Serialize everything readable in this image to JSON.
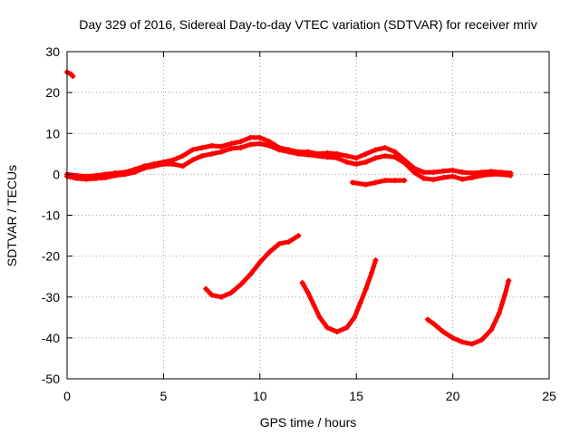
{
  "chart_data": {
    "type": "scatter",
    "title": "Day 329 of 2016, Sidereal Day-to-day VTEC variation (SDTVAR) for receiver mriv",
    "xlabel": "GPS time / hours",
    "ylabel": "SDTVAR / TECUs",
    "xlim": [
      0,
      25
    ],
    "ylim": [
      -50,
      30
    ],
    "xticks": [
      0,
      5,
      10,
      15,
      20,
      25
    ],
    "yticks": [
      -50,
      -40,
      -30,
      -20,
      -10,
      0,
      10,
      20,
      30
    ],
    "grid": true,
    "color": "#ff0000",
    "series": [
      {
        "name": "cluster-upper",
        "points": [
          [
            0.0,
            0
          ],
          [
            0.5,
            -0.3
          ],
          [
            1,
            -0.5
          ],
          [
            1.5,
            -0.3
          ],
          [
            2,
            0
          ],
          [
            2.5,
            0.3
          ],
          [
            3,
            0.5
          ],
          [
            3.5,
            1.2
          ],
          [
            4,
            2
          ],
          [
            4.5,
            2.5
          ],
          [
            5,
            3
          ],
          [
            5.5,
            3.5
          ],
          [
            6,
            4.5
          ],
          [
            6.5,
            6
          ],
          [
            7,
            6.5
          ],
          [
            7.5,
            7
          ],
          [
            8,
            6.8
          ],
          [
            8.5,
            7.5
          ],
          [
            9,
            8
          ],
          [
            9.5,
            9
          ],
          [
            10,
            9
          ],
          [
            10.5,
            8
          ],
          [
            11,
            6.5
          ],
          [
            11.5,
            6
          ],
          [
            12,
            5.5
          ],
          [
            12.5,
            5.5
          ],
          [
            13,
            5
          ],
          [
            13.5,
            5.2
          ],
          [
            14,
            5
          ],
          [
            14.5,
            4.5
          ],
          [
            15,
            4
          ],
          [
            15.5,
            5
          ],
          [
            16,
            6
          ],
          [
            16.5,
            6.5
          ],
          [
            17,
            5.5
          ],
          [
            17.5,
            3.5
          ],
          [
            18,
            1.5
          ],
          [
            18.5,
            0.5
          ],
          [
            19,
            0.5
          ],
          [
            19.5,
            0.8
          ],
          [
            20,
            1
          ],
          [
            20.5,
            0.5
          ],
          [
            21,
            0.3
          ],
          [
            21.5,
            0.5
          ],
          [
            22,
            0.7
          ],
          [
            22.5,
            0.5
          ],
          [
            23,
            0.3
          ]
        ]
      },
      {
        "name": "cluster-lower",
        "points": [
          [
            0,
            -0.5
          ],
          [
            0.5,
            -1
          ],
          [
            1,
            -1.2
          ],
          [
            1.5,
            -1
          ],
          [
            2,
            -0.8
          ],
          [
            2.5,
            -0.3
          ],
          [
            3,
            0
          ],
          [
            3.5,
            0.5
          ],
          [
            4,
            1.5
          ],
          [
            4.5,
            2
          ],
          [
            5,
            2.5
          ],
          [
            5.5,
            2.5
          ],
          [
            6,
            2
          ],
          [
            6.5,
            3.5
          ],
          [
            7,
            4.5
          ],
          [
            7.5,
            5
          ],
          [
            8,
            5.5
          ],
          [
            8.5,
            6.3
          ],
          [
            9,
            6.5
          ],
          [
            9.5,
            7.3
          ],
          [
            10,
            7.5
          ],
          [
            10.5,
            7
          ],
          [
            11,
            6
          ],
          [
            11.5,
            5.5
          ],
          [
            12,
            5
          ],
          [
            12.5,
            4.8
          ],
          [
            13,
            4.5
          ],
          [
            13.5,
            4.2
          ],
          [
            14,
            4
          ],
          [
            14.5,
            3
          ],
          [
            15,
            2.5
          ],
          [
            15.5,
            3
          ],
          [
            16,
            4
          ],
          [
            16.5,
            4.5
          ],
          [
            17,
            4.2
          ],
          [
            17.5,
            2.8
          ],
          [
            18,
            0.5
          ],
          [
            18.5,
            -1
          ],
          [
            19,
            -1.3
          ],
          [
            19.5,
            -0.8
          ],
          [
            20,
            -0.5
          ],
          [
            20.5,
            -1.2
          ],
          [
            21,
            -0.8
          ],
          [
            21.5,
            -0.3
          ],
          [
            22,
            0
          ],
          [
            22.5,
            0
          ],
          [
            23,
            -0.3
          ]
        ]
      },
      {
        "name": "arc-top-left",
        "points": [
          [
            0,
            25
          ],
          [
            0.2,
            24.5
          ],
          [
            0.3,
            24
          ]
        ]
      },
      {
        "name": "short-segment-15h",
        "points": [
          [
            14.8,
            -2
          ],
          [
            15.5,
            -2.5
          ],
          [
            16,
            -2
          ],
          [
            16.5,
            -1.5
          ],
          [
            17,
            -1.5
          ],
          [
            17.5,
            -1.5
          ]
        ]
      },
      {
        "name": "arc-7-12h",
        "points": [
          [
            7.2,
            -28
          ],
          [
            7.5,
            -29.5
          ],
          [
            8,
            -30
          ],
          [
            8.5,
            -29
          ],
          [
            9,
            -27
          ],
          [
            9.5,
            -24.5
          ],
          [
            10,
            -21.5
          ],
          [
            10.5,
            -19
          ],
          [
            11,
            -17
          ],
          [
            11.5,
            -16.5
          ],
          [
            12,
            -15
          ]
        ]
      },
      {
        "name": "arc-12-16h",
        "points": [
          [
            12.2,
            -26.5
          ],
          [
            12.5,
            -29
          ],
          [
            12.8,
            -32
          ],
          [
            13.1,
            -35
          ],
          [
            13.5,
            -37.5
          ],
          [
            14,
            -38.5
          ],
          [
            14.5,
            -37.5
          ],
          [
            14.9,
            -35
          ],
          [
            15.2,
            -31.5
          ],
          [
            15.5,
            -28
          ],
          [
            15.8,
            -24
          ],
          [
            16,
            -21
          ]
        ]
      },
      {
        "name": "arc-19-23h",
        "points": [
          [
            18.7,
            -35.5
          ],
          [
            19,
            -36.5
          ],
          [
            19.5,
            -38.5
          ],
          [
            20,
            -40
          ],
          [
            20.5,
            -41
          ],
          [
            21,
            -41.5
          ],
          [
            21.5,
            -40.5
          ],
          [
            22,
            -38
          ],
          [
            22.4,
            -34
          ],
          [
            22.7,
            -29.5
          ],
          [
            22.9,
            -26
          ]
        ]
      }
    ]
  }
}
